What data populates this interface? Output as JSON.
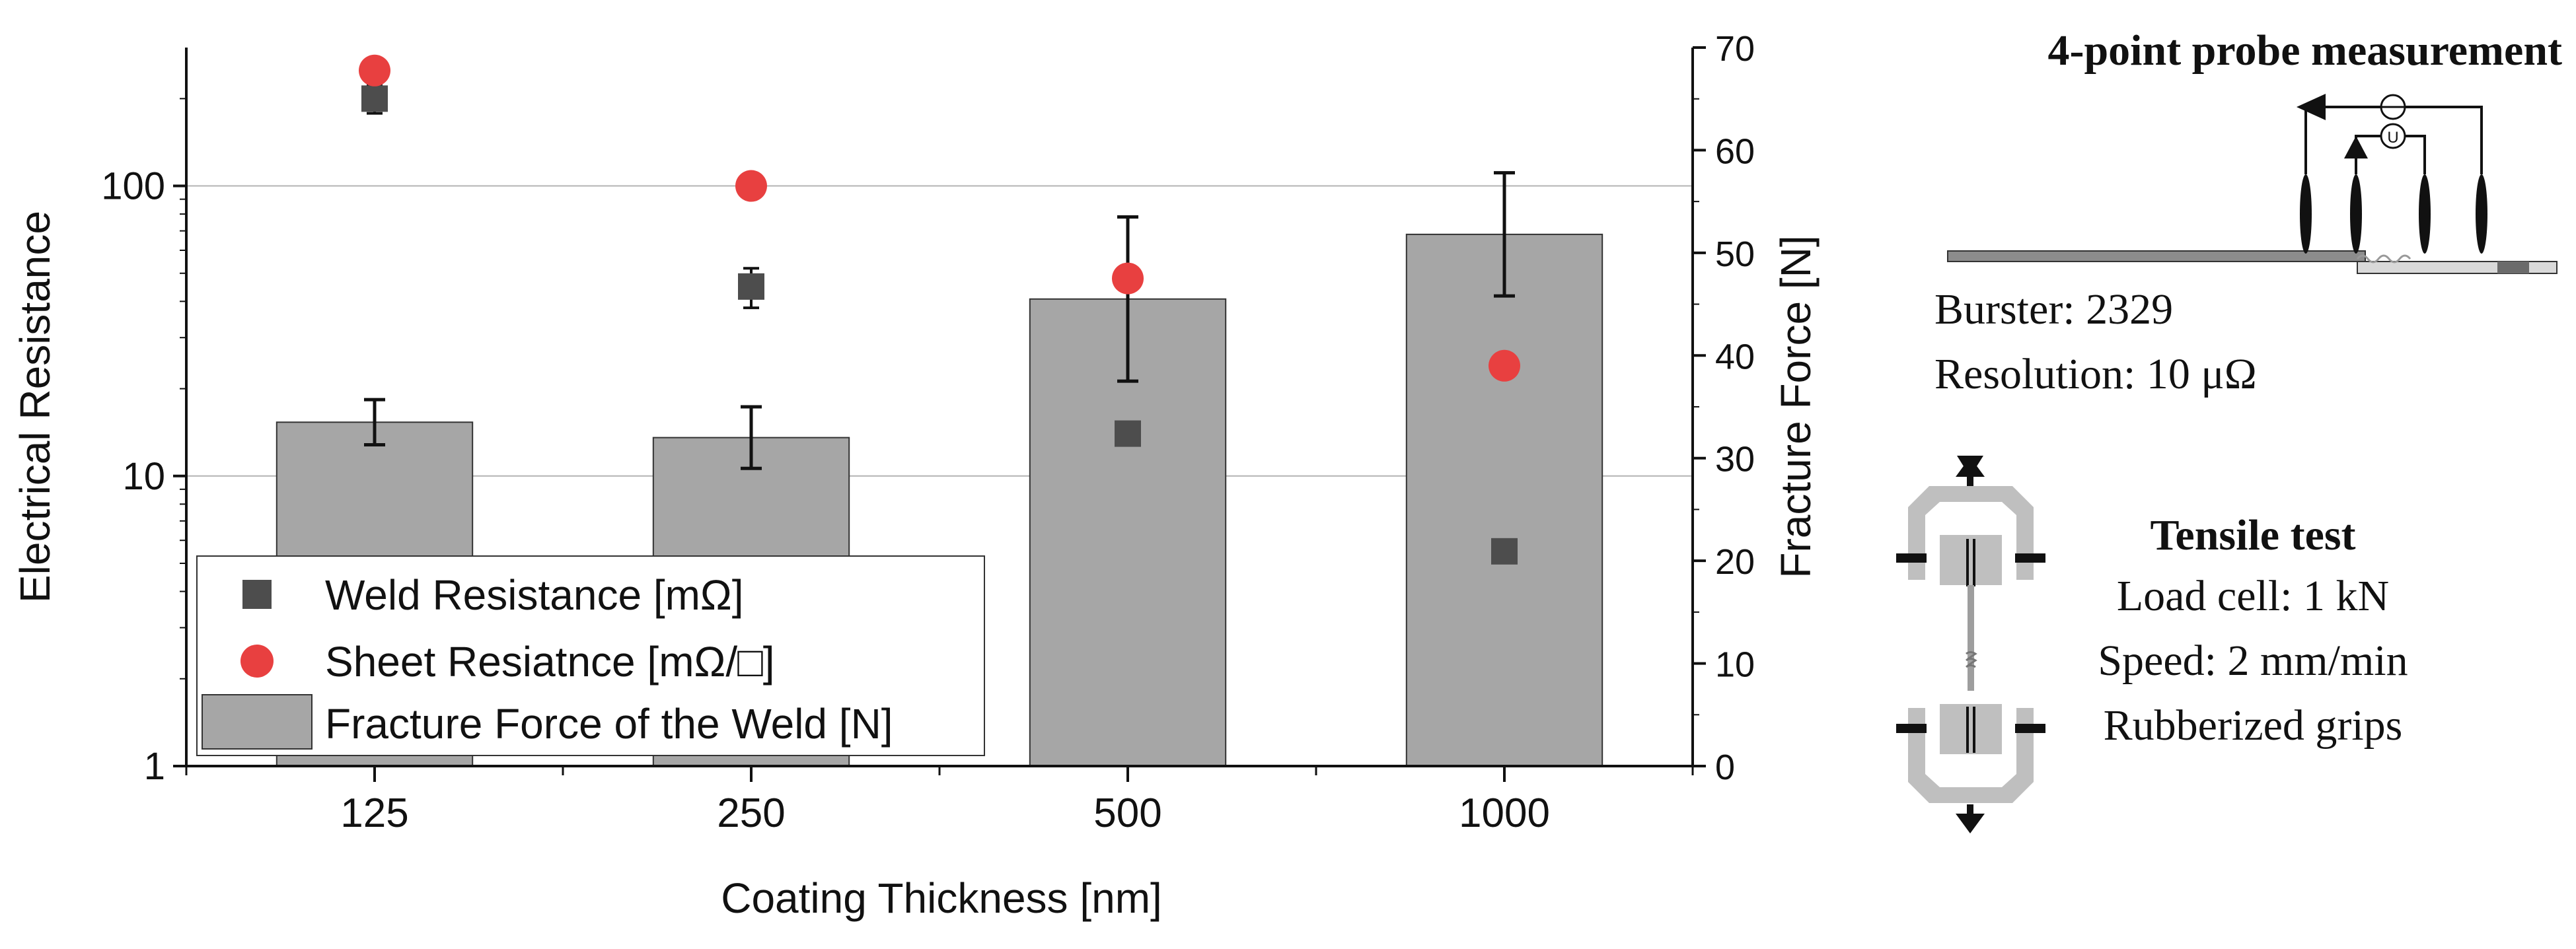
{
  "chart_data": {
    "type": "bar",
    "categories": [
      "125",
      "250",
      "500",
      "1000"
    ],
    "xlabel": "Coating Thickness [nm]",
    "ylabel": "Electrical Resistance",
    "y_scale": "log",
    "ylim": [
      1,
      300
    ],
    "yticks": [
      {
        "value": 1,
        "label": "1"
      },
      {
        "value": 10,
        "label": "10"
      },
      {
        "value": 100,
        "label": "100"
      }
    ],
    "y2label": "Fracture Force [N]",
    "y2lim": [
      0,
      70
    ],
    "y2ticks": [
      {
        "value": 0,
        "label": "0"
      },
      {
        "value": 10,
        "label": "10"
      },
      {
        "value": 20,
        "label": "20"
      },
      {
        "value": 30,
        "label": "30"
      },
      {
        "value": 40,
        "label": "40"
      },
      {
        "value": 50,
        "label": "50"
      },
      {
        "value": 60,
        "label": "60"
      },
      {
        "value": 70,
        "label": "70"
      }
    ],
    "grid": "horizontal at 10 and 100",
    "series": [
      {
        "name": "Fracture Force of the Weld [N]",
        "kind": "bar",
        "axis": "right",
        "color": "#a6a6a6",
        "values": [
          33.5,
          32.0,
          45.5,
          51.8
        ],
        "errors": [
          2.2,
          3.0,
          8.0,
          6.0
        ]
      },
      {
        "name": "Weld Resistance [mΩ]",
        "kind": "square-marker",
        "axis": "left",
        "color": "#4d4d4d",
        "values": [
          200,
          45,
          14,
          5.5
        ],
        "errors_low": [
          178,
          38,
          13.2,
          5.1
        ],
        "errors_high": [
          222,
          52,
          14.8,
          5.9
        ]
      },
      {
        "name": "Sheet Resiatnce [mΩ/□]",
        "kind": "circle-marker",
        "axis": "left",
        "color": "#e84040",
        "values": [
          250,
          100,
          48,
          24
        ]
      }
    ],
    "legend_position": "bottom-left"
  },
  "annotations": {
    "probe": {
      "title": "4-point probe measurement",
      "device": "Burster: 2329",
      "resolution": "Resolution: 10 μΩ",
      "current_symbol": "",
      "voltage_symbol": "U"
    },
    "tensile": {
      "title": "Tensile test",
      "load_cell": "Load cell: 1 kN",
      "speed": "Speed: 2 mm/min",
      "grips": "Rubberized grips"
    }
  }
}
